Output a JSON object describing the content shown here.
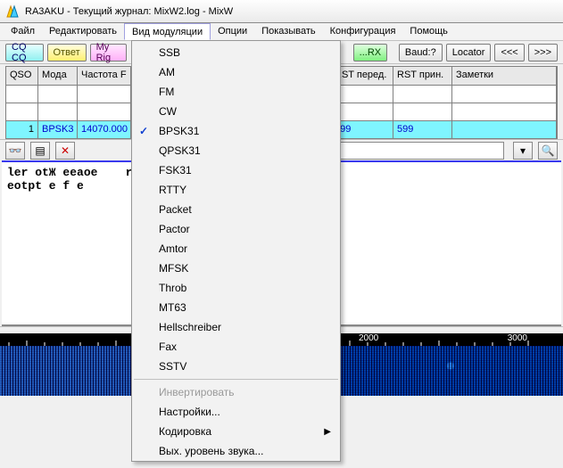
{
  "title": "RA3AKU - Текущий журнал: MixW2.log - MixW",
  "menu": {
    "items": [
      "Файл",
      "Редактировать",
      "Вид модуляции",
      "Опции",
      "Показывать",
      "Конфигурация",
      "Помощь"
    ],
    "active_index": 2
  },
  "toolbar": {
    "cqcq": "CQ CQ",
    "otvet": "Ответ",
    "myrig": "My Rig",
    "rx": "...RX",
    "baud": "Baud:?",
    "locator": "Locator",
    "prev": "<<<",
    "next": ">>>"
  },
  "logtable": {
    "headers": {
      "qso": "QSO",
      "mode": "Мода",
      "freq": "Частота F",
      "rst_sent": "RST перед.",
      "rst_rcvd": "RST прин.",
      "notes": "Заметки"
    },
    "rows": [
      {
        "qso": "",
        "mode": "",
        "freq": "",
        "rst_sent": "",
        "rst_rcvd": "",
        "notes": ""
      },
      {
        "qso": "",
        "mode": "",
        "freq": "",
        "rst_sent": "",
        "rst_rcvd": "",
        "notes": ""
      },
      {
        "qso": "1",
        "mode": "BPSK3",
        "freq": "14070.000",
        "rst_sent": "599",
        "rst_rcvd": "599",
        "notes": ""
      }
    ]
  },
  "iconbar": {
    "glasses": "👓",
    "page": "▤",
    "x": "✕",
    "search": "🔍"
  },
  "textarea": "ler otЖ eeaoe    r\neotpt e f e",
  "dropdown": {
    "items": [
      {
        "label": "SSB"
      },
      {
        "label": "AM"
      },
      {
        "label": "FM"
      },
      {
        "label": "CW"
      },
      {
        "label": "BPSK31",
        "checked": true
      },
      {
        "label": "QPSK31"
      },
      {
        "label": "FSK31"
      },
      {
        "label": "RTTY"
      },
      {
        "label": "Packet"
      },
      {
        "label": "Pactor"
      },
      {
        "label": "Amtor"
      },
      {
        "label": "MFSK"
      },
      {
        "label": "Throb"
      },
      {
        "label": "MT63"
      },
      {
        "label": "Hellschreiber"
      },
      {
        "label": "Fax"
      },
      {
        "label": "SSTV"
      },
      {
        "label": "---"
      },
      {
        "label": "Инвертировать",
        "disabled": true
      },
      {
        "label": "Настройки..."
      },
      {
        "label": "Кодировка",
        "sub": true
      },
      {
        "label": "Вых. уровень звука..."
      }
    ]
  },
  "waterfall": {
    "freq1": "2000",
    "freq2": "3000"
  },
  "colors": {
    "cyan": "#7ff5ff"
  }
}
